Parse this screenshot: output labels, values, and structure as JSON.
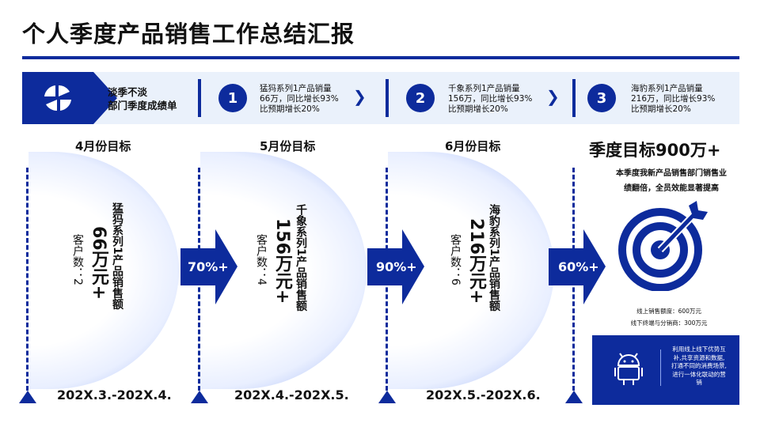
{
  "title": "个人季度产品销售工作总结汇报",
  "banner": {
    "lead_line1": "淡季不淡",
    "lead_line2": "部门季度成绩单",
    "steps": [
      {
        "num": "1",
        "line1": "猛犸系列1产品销量",
        "line2": "66万，同比增长93%",
        "line3": "比预期增长20%"
      },
      {
        "num": "2",
        "line1": "千象系列1产品销量",
        "line2": "156万，同比增长93%",
        "line3": "比预期增长20%"
      },
      {
        "num": "3",
        "line1": "海豹系列1产品销量",
        "line2": "216万，同比增长93%",
        "line3": "比预期增长20%"
      }
    ],
    "chevron": "❯"
  },
  "months": [
    {
      "label": "4月份目标",
      "product": "猛犸系列1产品销售额",
      "amount": "66万元+",
      "customers": "客户数：2",
      "date": "202X.3.-202X.4."
    },
    {
      "label": "5月份目标",
      "product": "千象系列1产品销售额",
      "amount": "156万元+",
      "customers": "客户数：4",
      "date": "202X.4.-202X.5."
    },
    {
      "label": "6月份目标",
      "product": "海豹系列1产品销售额",
      "amount": "216万元+",
      "customers": "客户数：6",
      "date": "202X.5.-202X.6."
    }
  ],
  "growth": [
    "70%+",
    "90%+",
    "60%+"
  ],
  "quarter": {
    "title": "季度目标900万+",
    "desc_line1": "本季度我新产品销售部门销售业",
    "desc_line2": "绩翻倍，全员效能显著提高",
    "online": "线上销售额度：600万元",
    "offline": "线下终端与分销商：300万元",
    "promo": "利用线上线下优势互补,共享资源和数据,打通不同的消费场景,进行一体化联动的营销"
  },
  "colors": {
    "primary": "#0d2b9c",
    "banner_bg": "#eaf1fb"
  },
  "icons": [
    "brand-logo-icon",
    "target-icon",
    "android-icon"
  ]
}
